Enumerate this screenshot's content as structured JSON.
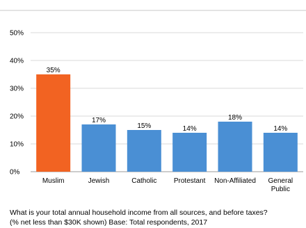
{
  "chart_data": {
    "type": "bar",
    "categories": [
      "Muslim",
      "Jewish",
      "Catholic",
      "Protestant",
      "Non-Affiliated",
      "General Public"
    ],
    "category_lines": [
      [
        "Muslim"
      ],
      [
        "Jewish"
      ],
      [
        "Catholic"
      ],
      [
        "Protestant"
      ],
      [
        "Non-Affiliated"
      ],
      [
        "General",
        "Public"
      ]
    ],
    "values": [
      35,
      17,
      15,
      14,
      18,
      14
    ],
    "value_labels": [
      "35%",
      "17%",
      "15%",
      "14%",
      "18%",
      "14%"
    ],
    "bar_colors": [
      "#f26322",
      "#4a8fd4",
      "#4a8fd4",
      "#4a8fd4",
      "#4a8fd4",
      "#4a8fd4"
    ],
    "yticks": [
      0,
      10,
      20,
      30,
      40,
      50
    ],
    "ytick_labels": [
      "0%",
      "10%",
      "20%",
      "30%",
      "40%",
      "50%"
    ],
    "ylim": [
      0,
      50
    ],
    "grid": true,
    "title": "",
    "xlabel": "",
    "ylabel": ""
  },
  "footnote": {
    "line1": "What is your total annual household income from all sources, and before taxes?",
    "line2": "(% net less than $30K shown) Base: Total respondents, 2017"
  }
}
